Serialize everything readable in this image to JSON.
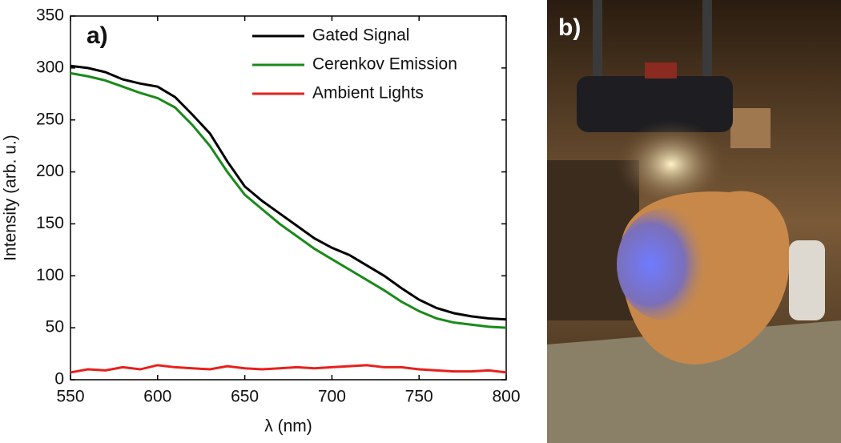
{
  "chart_data": {
    "type": "line",
    "annotations": [
      "a)"
    ],
    "x_label": "λ (nm)",
    "y_label": "Intensity (arb. u.)",
    "x": [
      550,
      560,
      570,
      580,
      590,
      600,
      610,
      620,
      630,
      640,
      650,
      660,
      670,
      680,
      690,
      700,
      710,
      720,
      730,
      740,
      750,
      760,
      770,
      780,
      790,
      800
    ],
    "series": [
      {
        "name": "Gated Signal",
        "color": "#000000",
        "values": [
          302,
          300,
          296,
          289,
          285,
          282,
          272,
          255,
          237,
          210,
          186,
          172,
          160,
          148,
          136,
          127,
          120,
          110,
          100,
          88,
          77,
          69,
          64,
          61,
          59,
          58
        ]
      },
      {
        "name": "Cerenkov Emission",
        "color": "#1a8a1a",
        "values": [
          295,
          292,
          288,
          282,
          276,
          271,
          262,
          245,
          225,
          200,
          178,
          164,
          150,
          138,
          126,
          116,
          106,
          96,
          86,
          75,
          66,
          59,
          55,
          53,
          51,
          50
        ]
      },
      {
        "name": "Ambient Lights",
        "color": "#e8201c",
        "values": [
          7,
          10,
          9,
          12,
          10,
          14,
          12,
          11,
          10,
          13,
          11,
          10,
          11,
          12,
          11,
          12,
          13,
          14,
          12,
          12,
          10,
          9,
          8,
          8,
          9,
          7
        ]
      }
    ],
    "xlim": [
      550,
      800
    ],
    "xticks": [
      550,
      600,
      650,
      700,
      750,
      800
    ],
    "ylim": [
      0,
      350
    ],
    "yticks": [
      0,
      50,
      100,
      150,
      200,
      250,
      300,
      350
    ],
    "legend": "upper right",
    "grid": false
  },
  "photo": {
    "label": "b)"
  }
}
